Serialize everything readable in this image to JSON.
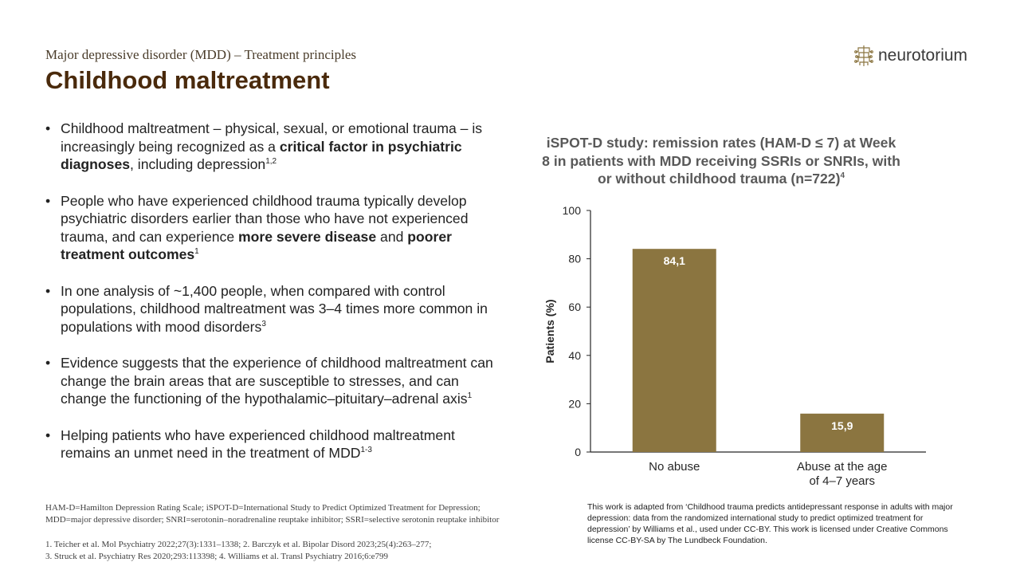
{
  "header": {
    "subtitle": "Major depressive disorder (MDD) – Treatment principles",
    "title": "Childhood maltreatment",
    "logo_text": "neurotorium"
  },
  "bullets": [
    {
      "parts": [
        {
          "t": "Childhood maltreatment – physical, sexual, or emotional trauma – is increasingly being recognized as a "
        },
        {
          "t": "critical factor in psychiatric diagnoses",
          "b": true
        },
        {
          "t": ", including depression"
        },
        {
          "t": "1,2",
          "sup": true
        }
      ]
    },
    {
      "parts": [
        {
          "t": "People who have experienced childhood trauma typically develop psychiatric disorders earlier than those who have not experienced trauma, and can experience "
        },
        {
          "t": "more severe disease",
          "b": true
        },
        {
          "t": " and "
        },
        {
          "t": "poorer treatment outcomes",
          "b": true
        },
        {
          "t": "1",
          "sup": true
        }
      ]
    },
    {
      "parts": [
        {
          "t": "In one analysis of ~1,400 people, when compared with control populations, childhood maltreatment was 3–4 times more common in populations with mood disorders"
        },
        {
          "t": "3",
          "sup": true
        }
      ]
    },
    {
      "parts": [
        {
          "t": "Evidence suggests that the experience of childhood maltreatment can change the brain areas that are susceptible to stresses, and can change the functioning of the hypothalamic–pituitary–adrenal axis"
        },
        {
          "t": "1",
          "sup": true
        }
      ]
    },
    {
      "parts": [
        {
          "t": "Helping patients who have experienced childhood maltreatment remains an unmet need in the treatment of MDD"
        },
        {
          "t": "1-3",
          "sup": true
        }
      ]
    }
  ],
  "chart_title": {
    "text": "iSPOT-D study: remission rates (HAM-D ≤ 7) at Week 8 in patients with MDD receiving SSRIs or SNRIs, with or without childhood trauma (n=722)",
    "sup": "4"
  },
  "chart_data": {
    "type": "bar",
    "title": "iSPOT-D study: remission rates (HAM-D ≤ 7) at Week 8 in patients with MDD receiving SSRIs or SNRIs, with or without childhood trauma (n=722)",
    "categories": [
      [
        "No abuse"
      ],
      [
        "Abuse at the age",
        "of 4–7 years"
      ]
    ],
    "values": [
      84.1,
      15.9
    ],
    "value_labels": [
      "84,1",
      "15,9"
    ],
    "xlabel": "",
    "ylabel": "Patients (%)",
    "ylim": [
      0,
      100
    ],
    "yticks": [
      0,
      20,
      40,
      60,
      80,
      100
    ],
    "bar_color": "#8b7540",
    "label_color": "#ffffff",
    "grid": false
  },
  "footnotes": {
    "abbreviations": [
      "HAM-D=Hamilton Depression Rating Scale; iSPOT-D=International Study to Predict Optimized Treatment for Depression;",
      "MDD=major depressive disorder; SNRI=serotonin–noradrenaline reuptake inhibitor; SSRI=selective serotonin reuptake inhibitor"
    ],
    "references": [
      "1. Teicher et al. Mol Psychiatry 2022;27(3):1331–1338; 2. Barczyk et al. Bipolar Disord 2023;25(4):263–277;",
      "3. Struck et al. Psychiatry Res 2020;293:113398; 4. Williams et al. Transl Psychiatry 2016;6:e799"
    ]
  },
  "credit": "This work is adapted from ‘Childhood trauma predicts antidepressant response in adults with major depression: data from the randomized international study to predict optimized treatment for depression’ by Williams et al., used under CC-BY. This work is licensed under Creative Commons license CC-BY-SA by The Lundbeck Foundation.",
  "colors": {
    "title": "#4a2a0c",
    "subtitle": "#4a3c2a",
    "bar": "#8b7540",
    "chart_title": "#595959"
  }
}
